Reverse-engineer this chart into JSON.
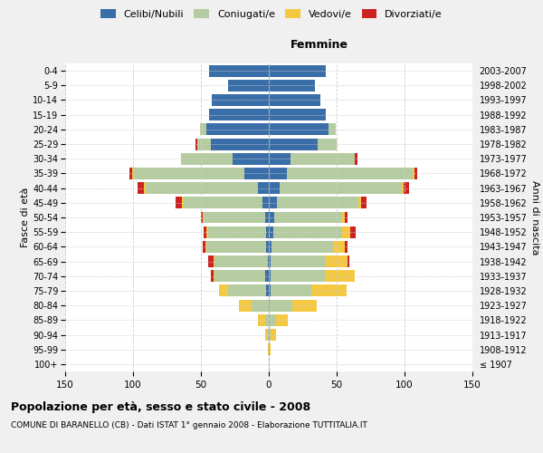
{
  "age_groups": [
    "100+",
    "95-99",
    "90-94",
    "85-89",
    "80-84",
    "75-79",
    "70-74",
    "65-69",
    "60-64",
    "55-59",
    "50-54",
    "45-49",
    "40-44",
    "35-39",
    "30-34",
    "25-29",
    "20-24",
    "15-19",
    "10-14",
    "5-9",
    "0-4"
  ],
  "birth_years": [
    "≤ 1907",
    "1908-1912",
    "1913-1917",
    "1918-1922",
    "1923-1927",
    "1928-1932",
    "1933-1937",
    "1938-1942",
    "1943-1947",
    "1948-1952",
    "1953-1957",
    "1958-1962",
    "1963-1967",
    "1968-1972",
    "1973-1977",
    "1978-1982",
    "1983-1987",
    "1988-1992",
    "1993-1997",
    "1998-2002",
    "2003-2007"
  ],
  "males": {
    "celibi": [
      0,
      0,
      0,
      0,
      0,
      2,
      3,
      1,
      2,
      2,
      3,
      5,
      8,
      18,
      27,
      43,
      46,
      44,
      42,
      30,
      44
    ],
    "coniugati": [
      0,
      0,
      1,
      3,
      13,
      28,
      37,
      39,
      44,
      43,
      45,
      58,
      83,
      82,
      38,
      10,
      5,
      0,
      0,
      0,
      0
    ],
    "vedovi": [
      0,
      1,
      2,
      5,
      9,
      7,
      1,
      1,
      1,
      1,
      1,
      1,
      1,
      1,
      0,
      0,
      0,
      0,
      0,
      0,
      0
    ],
    "divorziati": [
      0,
      0,
      0,
      0,
      0,
      0,
      2,
      4,
      2,
      2,
      1,
      5,
      5,
      2,
      0,
      1,
      0,
      0,
      0,
      0,
      0
    ]
  },
  "females": {
    "nubili": [
      0,
      0,
      0,
      0,
      0,
      1,
      1,
      1,
      2,
      3,
      4,
      6,
      8,
      13,
      16,
      36,
      44,
      42,
      38,
      34,
      42
    ],
    "coniugate": [
      0,
      0,
      1,
      5,
      17,
      30,
      40,
      41,
      45,
      51,
      50,
      60,
      90,
      93,
      47,
      14,
      5,
      0,
      0,
      0,
      0
    ],
    "vedove": [
      0,
      1,
      4,
      9,
      18,
      26,
      22,
      16,
      9,
      6,
      2,
      2,
      1,
      1,
      0,
      0,
      0,
      0,
      0,
      0,
      0
    ],
    "divorziate": [
      0,
      0,
      0,
      0,
      0,
      0,
      0,
      1,
      2,
      4,
      2,
      4,
      4,
      2,
      2,
      0,
      0,
      0,
      0,
      0,
      0
    ]
  },
  "color_celibi": "#3a6ea8",
  "color_coniugati": "#b5cba0",
  "color_vedovi": "#f5c842",
  "color_divorziati": "#cc2222",
  "title": "Popolazione per età, sesso e stato civile - 2008",
  "subtitle": "COMUNE DI BARANELLO (CB) - Dati ISTAT 1° gennaio 2008 - Elaborazione TUTTITALIA.IT",
  "xlabel_right": "Femmine",
  "ylabel_left": "Fasce di età",
  "ylabel_right": "Anni di nascita",
  "xlim": 150,
  "bg_color": "#f0f0f0",
  "plot_bg": "#ffffff",
  "grid_color": "#cccccc"
}
